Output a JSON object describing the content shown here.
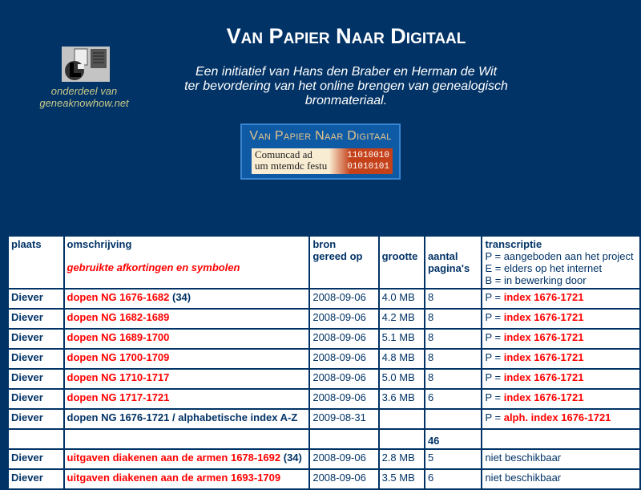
{
  "header": {
    "title": "Van Papier Naar Digitaal",
    "intro": [
      "Een initiatief van Hans den Braber en Herman de Wit",
      "ter bevordering van het online brengen van genealogisch",
      "bronmateriaal."
    ],
    "part_of": [
      "onderdeel van",
      "geneaknowhow.net"
    ],
    "banner": {
      "title": "Van Papier Naar Digitaal",
      "gothic": [
        "Comuncad ad",
        "um mtemdc festu"
      ],
      "binary": [
        "11010010",
        "01010101"
      ]
    }
  },
  "table": {
    "headers": {
      "plaats": "plaats",
      "omschrijving": "omschrijving",
      "abbrev_link": "gebruikte afkortingen en symbolen",
      "bron": [
        "bron",
        "gereed op"
      ],
      "grootte": "grootte",
      "aantal": [
        "aantal",
        "pagina's"
      ],
      "transcriptie": "transcriptie",
      "legend": [
        "P = aangeboden aan het project",
        "E = elders op het internet",
        "B = in bewerking door"
      ]
    },
    "rows": [
      {
        "plaats": "Diever",
        "desc": "dopen NG 1676-1682",
        "extra": " (34)",
        "link": true,
        "date": "2008-09-06",
        "size": "4.0 MB",
        "pages": "8",
        "tprefix": "P = ",
        "tlink": "index 1676-1721"
      },
      {
        "plaats": "Diever",
        "desc": "dopen NG 1682-1689",
        "extra": "",
        "link": true,
        "date": "2008-09-06",
        "size": "4.2 MB",
        "pages": "8",
        "tprefix": "P = ",
        "tlink": "index 1676-1721"
      },
      {
        "plaats": "Diever",
        "desc": "dopen NG 1689-1700",
        "extra": "",
        "link": true,
        "date": "2008-09-06",
        "size": "5.1 MB",
        "pages": "8",
        "tprefix": "P = ",
        "tlink": "index 1676-1721"
      },
      {
        "plaats": "Diever",
        "desc": "dopen NG 1700-1709",
        "extra": "",
        "link": true,
        "date": "2008-09-06",
        "size": "4.8 MB",
        "pages": "8",
        "tprefix": "P = ",
        "tlink": "index 1676-1721"
      },
      {
        "plaats": "Diever",
        "desc": "dopen NG 1710-1717",
        "extra": "",
        "link": true,
        "date": "2008-09-06",
        "size": "5.0 MB",
        "pages": "8",
        "tprefix": "P = ",
        "tlink": "index 1676-1721"
      },
      {
        "plaats": "Diever",
        "desc": "dopen NG 1717-1721",
        "extra": "",
        "link": true,
        "date": "2008-09-06",
        "size": "3.6 MB",
        "pages": "6",
        "tprefix": "P = ",
        "tlink": "index 1676-1721"
      },
      {
        "plaats": "Diever",
        "desc": "dopen NG 1676-1721 / alphabetische index A-Z",
        "extra": "",
        "link": false,
        "date": "2009-08-31",
        "size": "",
        "pages": "",
        "tprefix": "P = ",
        "tlink": "alph. index 1676-1721"
      },
      {
        "plaats": "",
        "desc": "",
        "extra": "",
        "link": false,
        "date": "",
        "size": "",
        "pages": "46",
        "pages_bold": true,
        "tprefix": "",
        "tlink": ""
      },
      {
        "plaats": "Diever",
        "desc": "uitgaven diakenen aan de armen 1678-1692",
        "extra": " (34)",
        "link": true,
        "date": "2008-09-06",
        "size": "2.8 MB",
        "pages": "5",
        "tprefix": "niet beschikbaar",
        "tlink": ""
      },
      {
        "plaats": "Diever",
        "desc": "uitgaven diakenen aan de armen 1693-1709",
        "extra": "",
        "link": true,
        "date": "2008-09-06",
        "size": "3.5 MB",
        "pages": "6",
        "tprefix": "niet beschikbaar",
        "tlink": ""
      }
    ]
  },
  "colors": {
    "background": "#023366",
    "link": "#ff0000",
    "text": "#023366"
  }
}
